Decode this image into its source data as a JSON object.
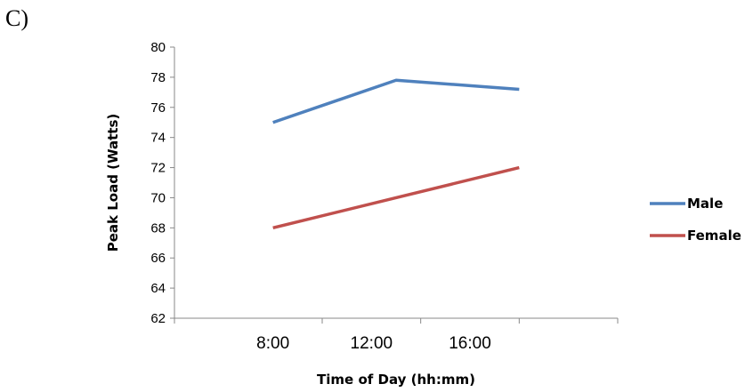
{
  "panel_label": "C)",
  "chart_data": {
    "type": "line",
    "title": "",
    "xlabel": "Time of Day (hh:mm)",
    "ylabel": "Peak Load (Watts)",
    "categories": [
      "8:00",
      "12:00",
      "16:00"
    ],
    "ylim": [
      62,
      80
    ],
    "yticks": [
      62,
      64,
      66,
      68,
      70,
      72,
      74,
      76,
      78,
      80
    ],
    "grid": false,
    "legend_position": "right",
    "series": [
      {
        "name": "Male",
        "color": "#4F81BD",
        "points": [
          [
            8,
            75.0
          ],
          [
            13,
            77.8
          ],
          [
            18,
            77.2
          ]
        ]
      },
      {
        "name": "Female",
        "color": "#C0504D",
        "points": [
          [
            8,
            68.0
          ],
          [
            13,
            70.0
          ],
          [
            18,
            72.0
          ]
        ]
      }
    ]
  }
}
